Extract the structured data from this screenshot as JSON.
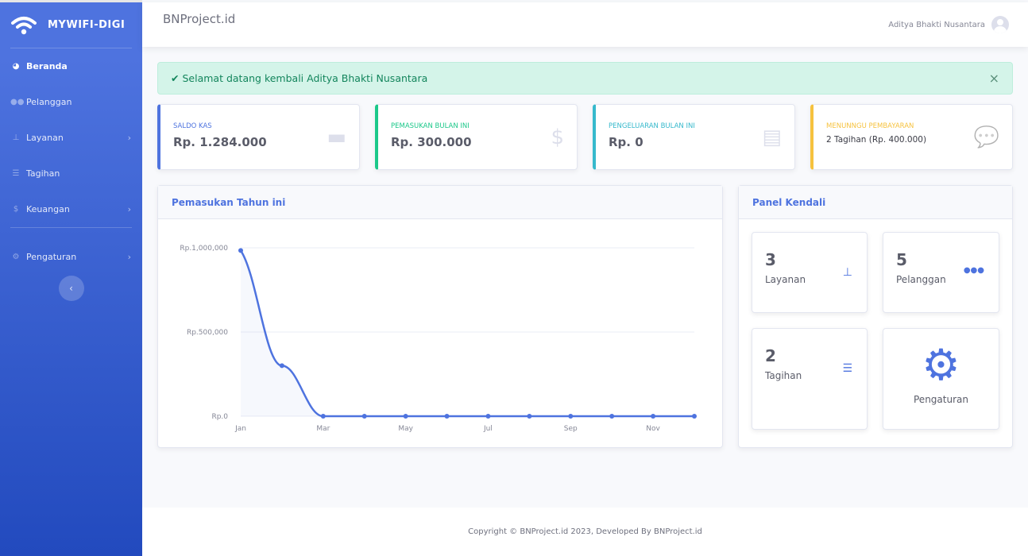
{
  "sidebar": {
    "brand": "MYWIFI-DIGI",
    "items": [
      {
        "label": "Beranda",
        "icon": "tachometer-icon",
        "active": true
      },
      {
        "label": "Pelanggan",
        "icon": "users-icon"
      },
      {
        "label": "Layanan",
        "icon": "sitemap-icon",
        "chevron": true
      },
      {
        "label": "Tagihan",
        "icon": "list-check-icon"
      },
      {
        "label": "Keuangan",
        "icon": "dollar-icon",
        "chevron": true
      },
      {
        "label": "Pengaturan",
        "icon": "gear-icon",
        "chevron": true
      }
    ]
  },
  "topbar": {
    "project": "BNProject.id",
    "user": "Aditya Bhakti Nusantara"
  },
  "alert": {
    "message": "Selamat datang kembali Aditya Bhakti Nusantara"
  },
  "stats": [
    {
      "label": "SALDO KAS",
      "value": "Rp. 1.284.000",
      "color": "#4e73df",
      "icon": "wallet-icon"
    },
    {
      "label": "PEMASUKAN BULAN INI",
      "value": "Rp. 300.000",
      "color": "#1cc88a",
      "icon": "dollar-icon"
    },
    {
      "label": "PENGELUARAN BULAN INI",
      "value": "Rp. 0",
      "color": "#36b9cc",
      "icon": "clipboard-list-icon"
    },
    {
      "label": "MENUNNGU PEMBAYARAN",
      "value": "2 Tagihan (Rp. 400.000)",
      "color": "#f6c23e",
      "icon": "comments-icon"
    }
  ],
  "chart_card": {
    "title": "Pemasukan Tahun ini"
  },
  "chart_data": {
    "type": "area",
    "title": "Pemasukan Tahun ini",
    "x": [
      "Jan",
      "Feb",
      "Mar",
      "Apr",
      "May",
      "Jun",
      "Jul",
      "Aug",
      "Sep",
      "Oct",
      "Nov",
      "Dec"
    ],
    "xtick_labels": [
      "Jan",
      "Mar",
      "May",
      "Jul",
      "Sep",
      "Nov"
    ],
    "values": [
      984000,
      300000,
      0,
      0,
      0,
      0,
      0,
      0,
      0,
      0,
      0,
      0
    ],
    "ylim": [
      0,
      1000000
    ],
    "yticks": [
      "Rp.0",
      "Rp.500,000",
      "Rp.1,000,000"
    ],
    "grid": true,
    "color": "#4e73df"
  },
  "panel": {
    "title": "Panel Kendali",
    "items": [
      {
        "count": "3",
        "label": "Layanan"
      },
      {
        "count": "5",
        "label": "Pelanggan"
      },
      {
        "count": "2",
        "label": "Tagihan"
      },
      {
        "label": "Pengaturan"
      }
    ]
  },
  "footer": {
    "text": "Copyright © BNProject.id 2023, Developed By BNProject.id"
  }
}
